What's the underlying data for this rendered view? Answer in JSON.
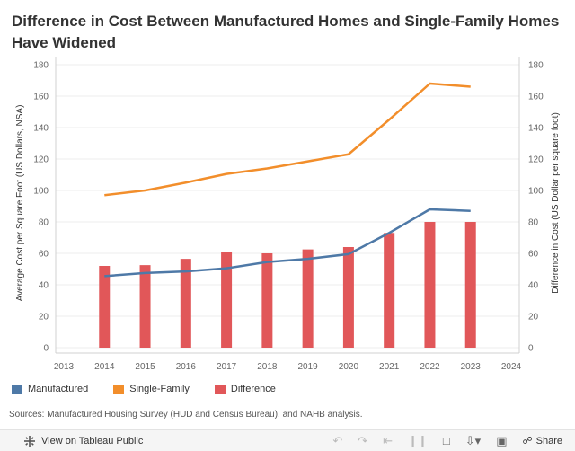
{
  "title": "Difference in Cost Between Manufactured Homes and Single-Family Homes Have Widened",
  "chart_data": {
    "type": "bar+line",
    "x_ticks": [
      "2013",
      "2014",
      "2015",
      "2016",
      "2017",
      "2018",
      "2019",
      "2020",
      "2021",
      "2022",
      "2023",
      "2024"
    ],
    "years": [
      2014,
      2015,
      2016,
      2017,
      2018,
      2019,
      2020,
      2021,
      2022,
      2023
    ],
    "xlim": [
      2013,
      2024
    ],
    "y_ticks": [
      0,
      20,
      40,
      60,
      80,
      100,
      120,
      140,
      160,
      180
    ],
    "ylim": [
      0,
      180
    ],
    "ylabel_left": "Average Cost per Square Foot (US Dollars, NSA)",
    "ylabel_right": "Difference in Cost (US Dollar per square foot)",
    "series": [
      {
        "name": "Manufactured",
        "type": "line",
        "color": "#4e79a7",
        "values": [
          45.5,
          47.5,
          48.5,
          50.5,
          54.5,
          56.5,
          59.5,
          73,
          88,
          87
        ]
      },
      {
        "name": "Single-Family",
        "type": "line",
        "color": "#f28e2b",
        "values": [
          97,
          100,
          105,
          110.5,
          114,
          118.5,
          123,
          145,
          168,
          166
        ]
      },
      {
        "name": "Difference",
        "type": "bar",
        "color": "#e15759",
        "values": [
          52,
          52.5,
          56.5,
          61,
          60,
          62.5,
          64,
          73,
          80,
          80
        ]
      }
    ]
  },
  "legend": {
    "manufactured": "Manufactured",
    "single_family": "Single-Family",
    "difference": "Difference"
  },
  "source": "Sources: Manufactured Housing Survey (HUD and Census Bureau), and NAHB analysis.",
  "footer": {
    "view_label": "View on Tableau Public",
    "share_label": "Share"
  }
}
